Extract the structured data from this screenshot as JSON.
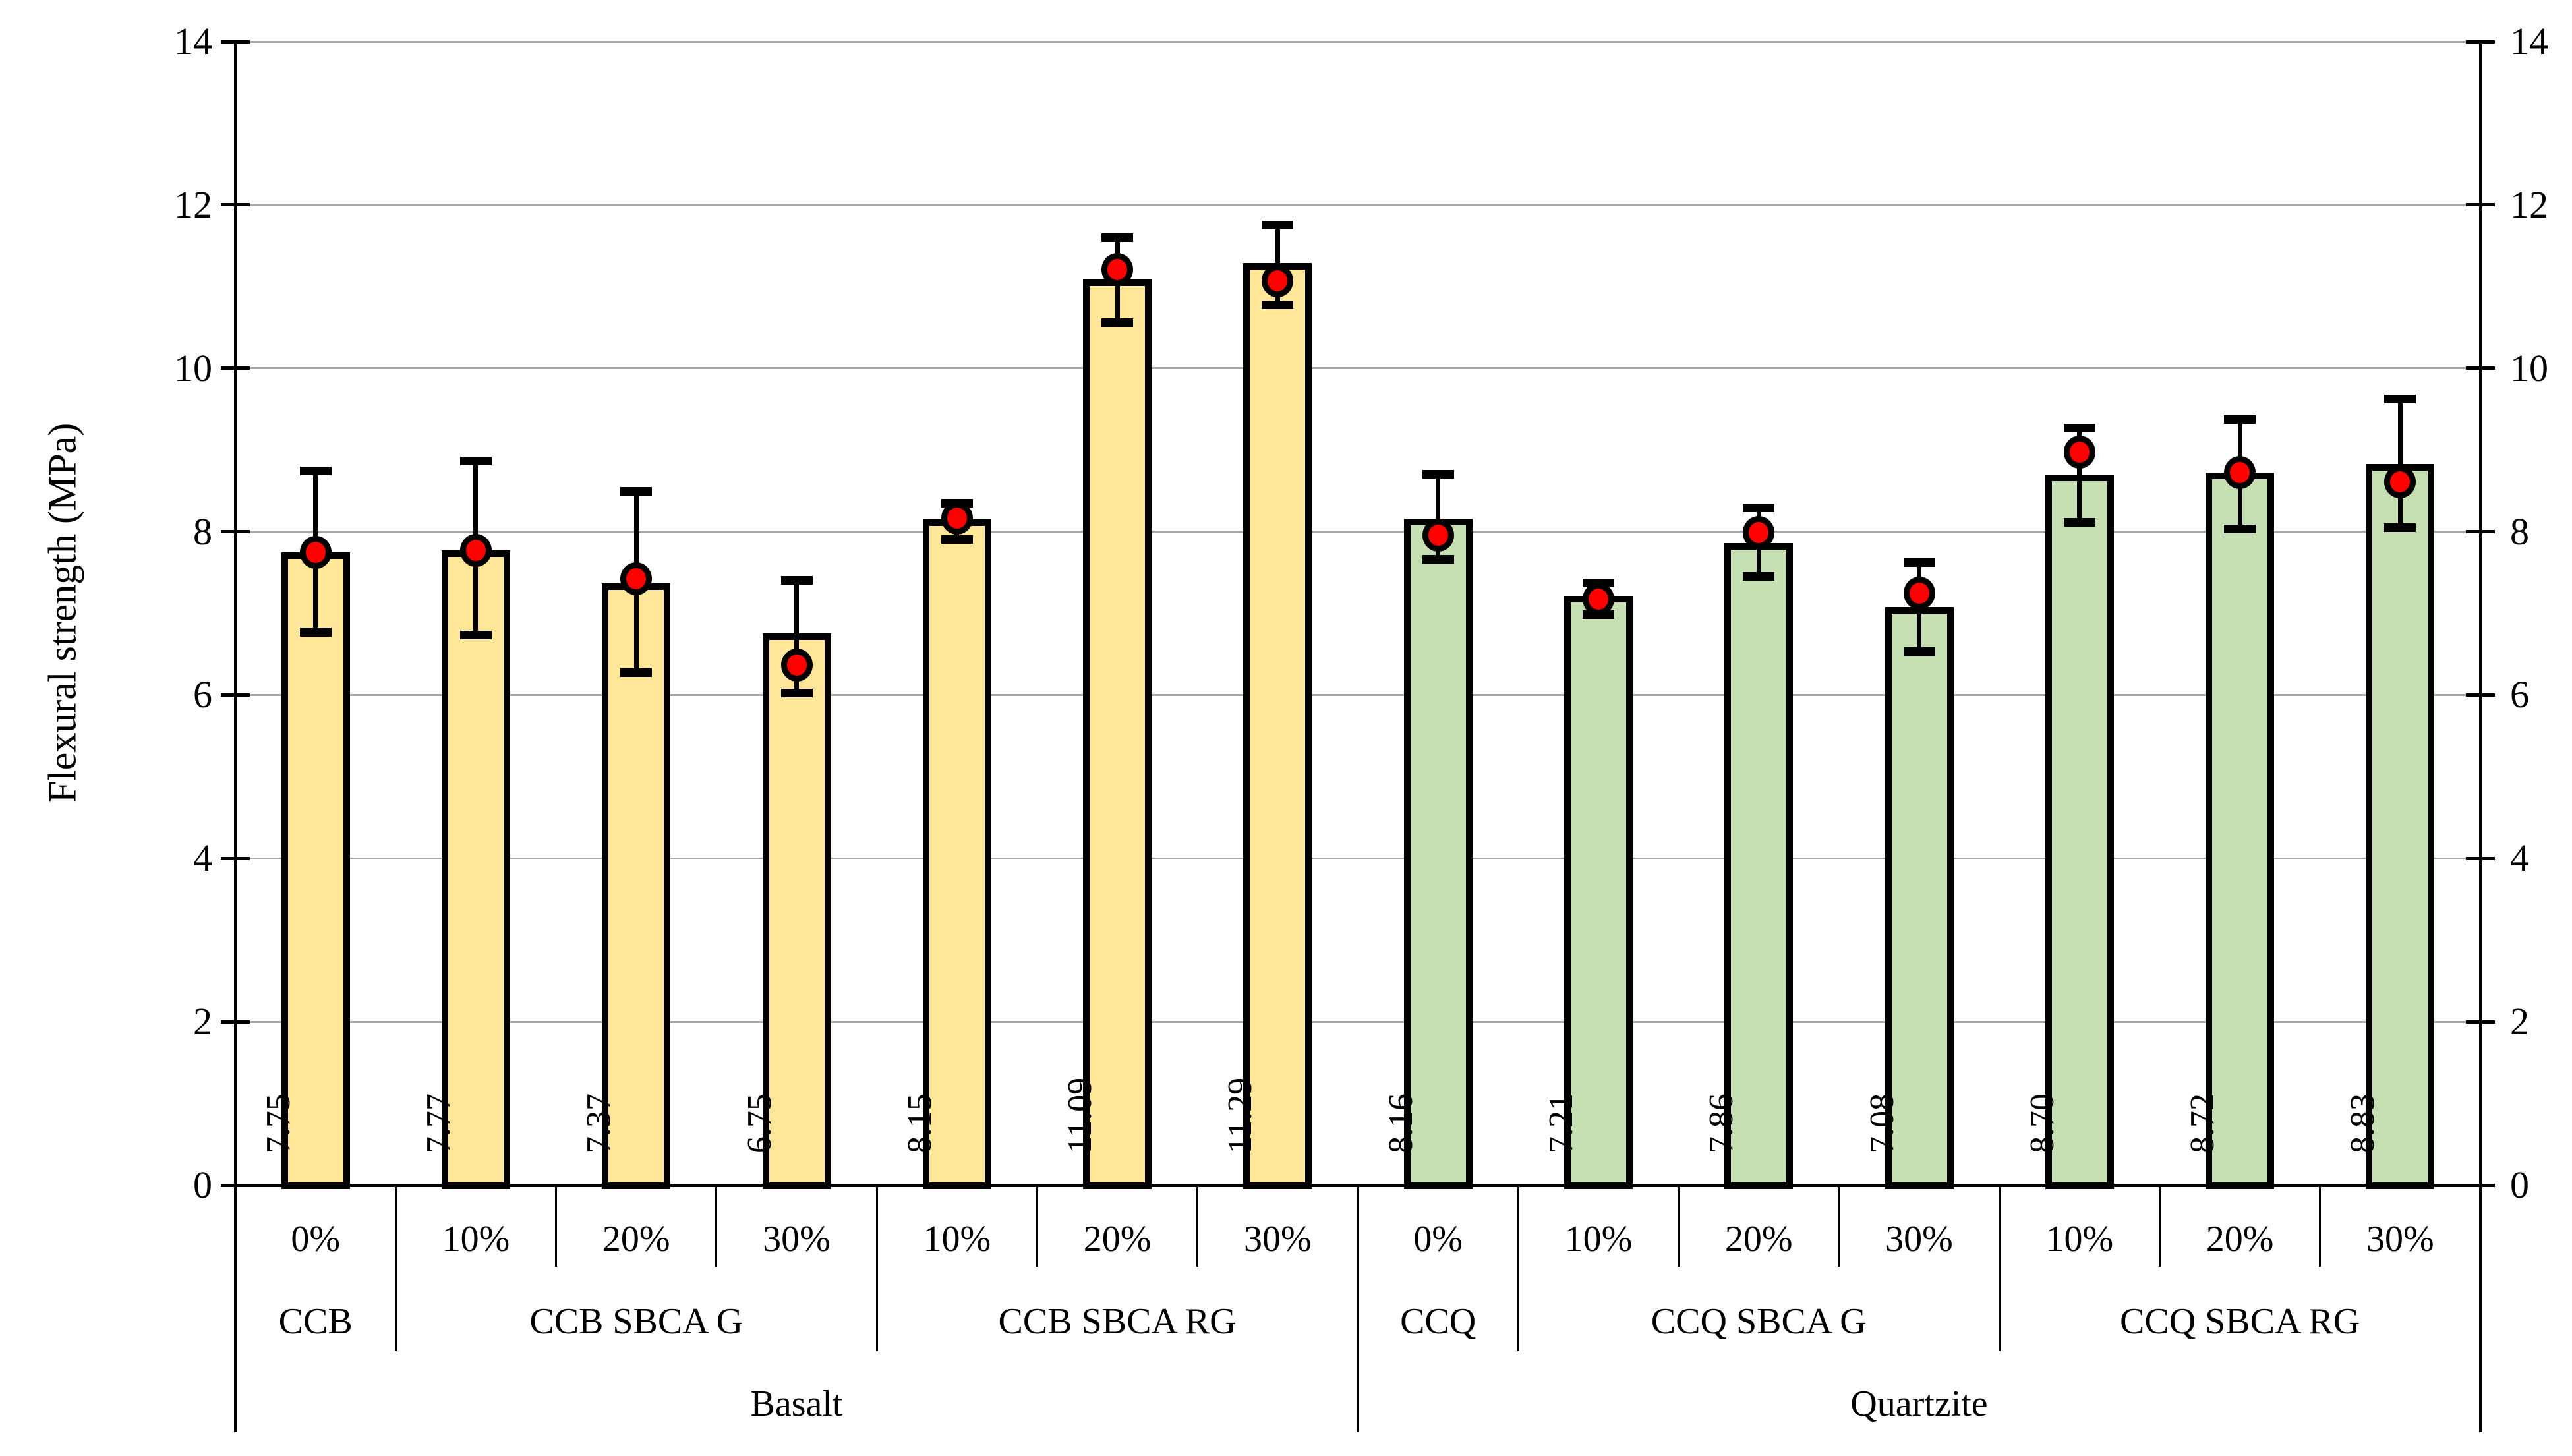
{
  "chart_data": {
    "type": "bar",
    "title": "",
    "ylabel": "Flexural strength (MPa)",
    "xlabel": "",
    "ylim": [
      0,
      14
    ],
    "yticks": [
      "0",
      "2",
      "4",
      "6",
      "8",
      "10",
      "12",
      "14"
    ],
    "y_axis_sides": [
      "left",
      "right"
    ],
    "grid": true,
    "legend": false,
    "marker_meaning": "mean-marker with error bars",
    "colors": {
      "basalt_bar_fill": "#FFE699",
      "quartzite_bar_fill": "#C6E0B4",
      "bar_border": "#000000",
      "marker_fill": "#FF0000",
      "marker_border": "#000000",
      "error_bar": "#000000",
      "gridline": "#A8A8A8",
      "axis": "#000000",
      "background": "#FFFFFF"
    },
    "groups": [
      {
        "label": "Basalt",
        "color_key": "basalt_bar_fill",
        "mixes": [
          {
            "label": "CCB",
            "bars": [
              {
                "pct": "0%",
                "value": 7.75,
                "value_label": "7.75",
                "marker": 7.75,
                "err_low": 6.77,
                "err_high": 8.74
              }
            ]
          },
          {
            "label": "CCB SBCA G",
            "bars": [
              {
                "pct": "10%",
                "value": 7.77,
                "value_label": "7.77",
                "marker": 7.77,
                "err_low": 6.73,
                "err_high": 8.86
              },
              {
                "pct": "20%",
                "value": 7.37,
                "value_label": "7.37",
                "marker": 7.42,
                "err_low": 6.27,
                "err_high": 8.49
              },
              {
                "pct": "30%",
                "value": 6.75,
                "value_label": "6.75",
                "marker": 6.37,
                "err_low": 6.02,
                "err_high": 7.4
              }
            ]
          },
          {
            "label": "CCB SBCA RG",
            "bars": [
              {
                "pct": "10%",
                "value": 8.15,
                "value_label": "8.15",
                "marker": 8.17,
                "err_low": 7.9,
                "err_high": 8.35
              },
              {
                "pct": "20%",
                "value": 11.09,
                "value_label": "11.09",
                "marker": 11.21,
                "err_low": 10.56,
                "err_high": 11.6
              },
              {
                "pct": "30%",
                "value": 11.29,
                "value_label": "11.29",
                "marker": 11.07,
                "err_low": 10.78,
                "err_high": 11.75
              }
            ]
          }
        ]
      },
      {
        "label": "Quartzite",
        "color_key": "quartzite_bar_fill",
        "mixes": [
          {
            "label": "CCQ",
            "bars": [
              {
                "pct": "0%",
                "value": 8.16,
                "value_label": "8.16",
                "marker": 7.96,
                "err_low": 7.66,
                "err_high": 8.7
              }
            ]
          },
          {
            "label": "CCQ SBCA G",
            "bars": [
              {
                "pct": "10%",
                "value": 7.21,
                "value_label": "7.21",
                "marker": 7.17,
                "err_low": 6.98,
                "err_high": 7.37
              },
              {
                "pct": "20%",
                "value": 7.86,
                "value_label": "7.86",
                "marker": 7.99,
                "err_low": 7.45,
                "err_high": 8.29
              },
              {
                "pct": "30%",
                "value": 7.08,
                "value_label": "7.08",
                "marker": 7.25,
                "err_low": 6.53,
                "err_high": 7.62
              }
            ]
          },
          {
            "label": "CCQ SBCA RG",
            "bars": [
              {
                "pct": "10%",
                "value": 8.7,
                "value_label": "8.70",
                "marker": 8.97,
                "err_low": 8.11,
                "err_high": 9.27
              },
              {
                "pct": "20%",
                "value": 8.72,
                "value_label": "8.72",
                "marker": 8.72,
                "err_low": 8.03,
                "err_high": 9.37
              },
              {
                "pct": "30%",
                "value": 8.83,
                "value_label": "8.83",
                "marker": 8.61,
                "err_low": 8.05,
                "err_high": 9.62
              }
            ]
          }
        ]
      }
    ]
  }
}
